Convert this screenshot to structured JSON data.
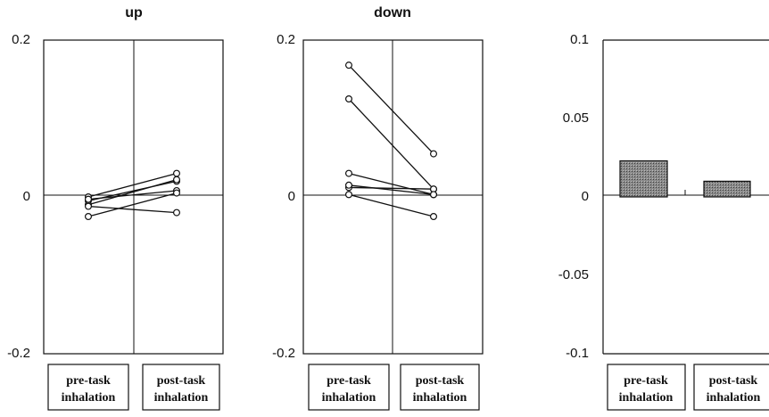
{
  "chart_data": [
    {
      "type": "line",
      "title": "up",
      "ylim": [
        -0.2,
        0.2
      ],
      "yticks": [
        {
          "value": 0.2,
          "label": "0.2"
        },
        {
          "value": 0,
          "label": "0"
        },
        {
          "value": -0.2,
          "label": "-0.2"
        }
      ],
      "categories": [
        [
          "pre-task",
          "inhalation"
        ],
        [
          "post-task",
          "inhalation"
        ]
      ],
      "series": [
        {
          "values": [
            0.0,
            0.03
          ]
        },
        {
          "values": [
            -0.005,
            0.02
          ]
        },
        {
          "values": [
            -0.01,
            0.022
          ]
        },
        {
          "values": [
            -0.003,
            0.008
          ]
        },
        {
          "values": [
            -0.025,
            0.005
          ]
        },
        {
          "values": [
            -0.012,
            -0.02
          ]
        }
      ]
    },
    {
      "type": "line",
      "title": "down",
      "ylim": [
        -0.2,
        0.2
      ],
      "yticks": [
        {
          "value": 0.2,
          "label": "0.2"
        },
        {
          "value": 0,
          "label": "0"
        },
        {
          "value": -0.2,
          "label": "-0.2"
        }
      ],
      "categories": [
        [
          "pre-task",
          "inhalation"
        ],
        [
          "post-task",
          "inhalation"
        ]
      ],
      "series": [
        {
          "values": [
            0.168,
            0.055
          ]
        },
        {
          "values": [
            0.125,
            0.01
          ]
        },
        {
          "values": [
            0.03,
            0.003
          ]
        },
        {
          "values": [
            0.012,
            0.01
          ]
        },
        {
          "values": [
            0.015,
            0.003
          ]
        },
        {
          "values": [
            0.003,
            -0.025
          ]
        }
      ]
    },
    {
      "type": "bar",
      "title": "",
      "ylim": [
        -0.1,
        0.1
      ],
      "yticks": [
        {
          "value": 0.1,
          "label": "0.1"
        },
        {
          "value": 0.05,
          "label": "0.05"
        },
        {
          "value": 0,
          "label": "0"
        },
        {
          "value": -0.05,
          "label": "-0.05"
        },
        {
          "value": -0.1,
          "label": "-0.1"
        }
      ],
      "categories": [
        [
          "pre-task",
          "inhalation"
        ],
        [
          "post-task",
          "inhalation"
        ]
      ],
      "values": [
        0.023,
        0.01
      ]
    }
  ]
}
